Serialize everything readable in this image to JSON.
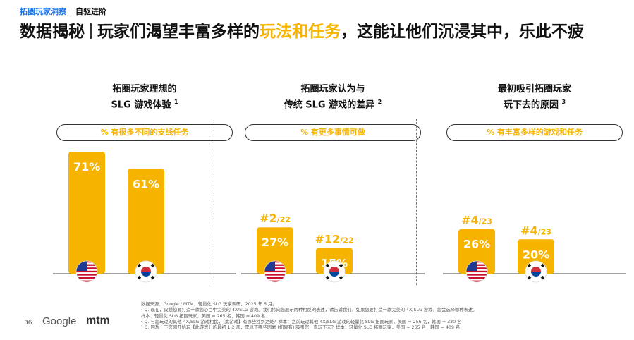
{
  "header": {
    "tag": "拓圈玩家洞察",
    "section": "自驱进阶"
  },
  "headline": {
    "part1": "数据揭秘",
    "part2": "玩家们渴望丰富多样的",
    "highlight": "玩法和任务",
    "part3": "，这能让他们沉浸其中，乐此不疲"
  },
  "colors": {
    "bar": "#F6B400",
    "accent": "#1A73E8"
  },
  "chart_data": [
    {
      "type": "bar",
      "title_line1": "拓圈玩家理想的",
      "title_line2": "SLG 游戏体验",
      "footnote": "1",
      "pill": "% 有很多不同的支线任务",
      "categories": [
        "us-flag-icon",
        "kr-flag-icon"
      ],
      "values": [
        71,
        61
      ],
      "labels": [
        "71%",
        "61%"
      ],
      "ranks": [
        "",
        ""
      ],
      "rank_totals": [
        "",
        ""
      ],
      "ylim": [
        0,
        71
      ]
    },
    {
      "type": "bar",
      "title_line1": "拓圈玩家认为与",
      "title_line2": "传统 SLG 游戏的差异",
      "footnote": "2",
      "pill": "% 有更多事情可做",
      "categories": [
        "us-flag-icon",
        "kr-flag-icon"
      ],
      "values": [
        27,
        15
      ],
      "labels": [
        "27%",
        "15%"
      ],
      "ranks": [
        "#2",
        "#12"
      ],
      "rank_totals": [
        "/22",
        "/22"
      ],
      "ylim": [
        0,
        71
      ]
    },
    {
      "type": "bar",
      "title_line1": "最初吸引拓圈玩家",
      "title_line2": "玩下去的原因",
      "footnote": "3",
      "pill": "% 有丰富多样的游戏和任务",
      "categories": [
        "us-flag-icon",
        "kr-flag-icon"
      ],
      "values": [
        26,
        20
      ],
      "labels": [
        "26%",
        "20%"
      ],
      "ranks": [
        "#4",
        "#4"
      ],
      "rank_totals": [
        "/23",
        "/23"
      ],
      "ylim": [
        0,
        71
      ]
    }
  ],
  "footer": {
    "source": "数据来源：Google / MTM，轻量化 SLG 玩家调研，2025 年 6 月。",
    "note1": "¹ Q. 现在，设想您要打造一款您心目中完美的 4X/SLG 游戏。我们将向您展示两种相反的表述，请告诉我们，如果您要打造一款完美的 4X/SLG 游戏，您会选择哪种表述。",
    "note1b": "样本：轻量化 SLG 拓圈玩家，美国 = 265 名，韩国 = 409 名",
    "note2": "² Q. 与您玩过的其他 4X/SLG 游戏相比，【此游戏】有哪些独到之处？样本：之前玩过其他 4X/SLG 游戏的轻量化 SLG 拓圈玩家，美国 = 256 名，韩国 = 330 名",
    "note3": "³ Q. 回想一下您刚开始玩【此游戏】的最初 1-2 周，是以下哪些因素 (如果有) 吸引您一直玩下去？样本：轻量化 SLG 拓圈玩家，美国 = 265 名，韩国 = 409 名",
    "page": "36",
    "logo1": "Google",
    "logo2": "mtm"
  }
}
